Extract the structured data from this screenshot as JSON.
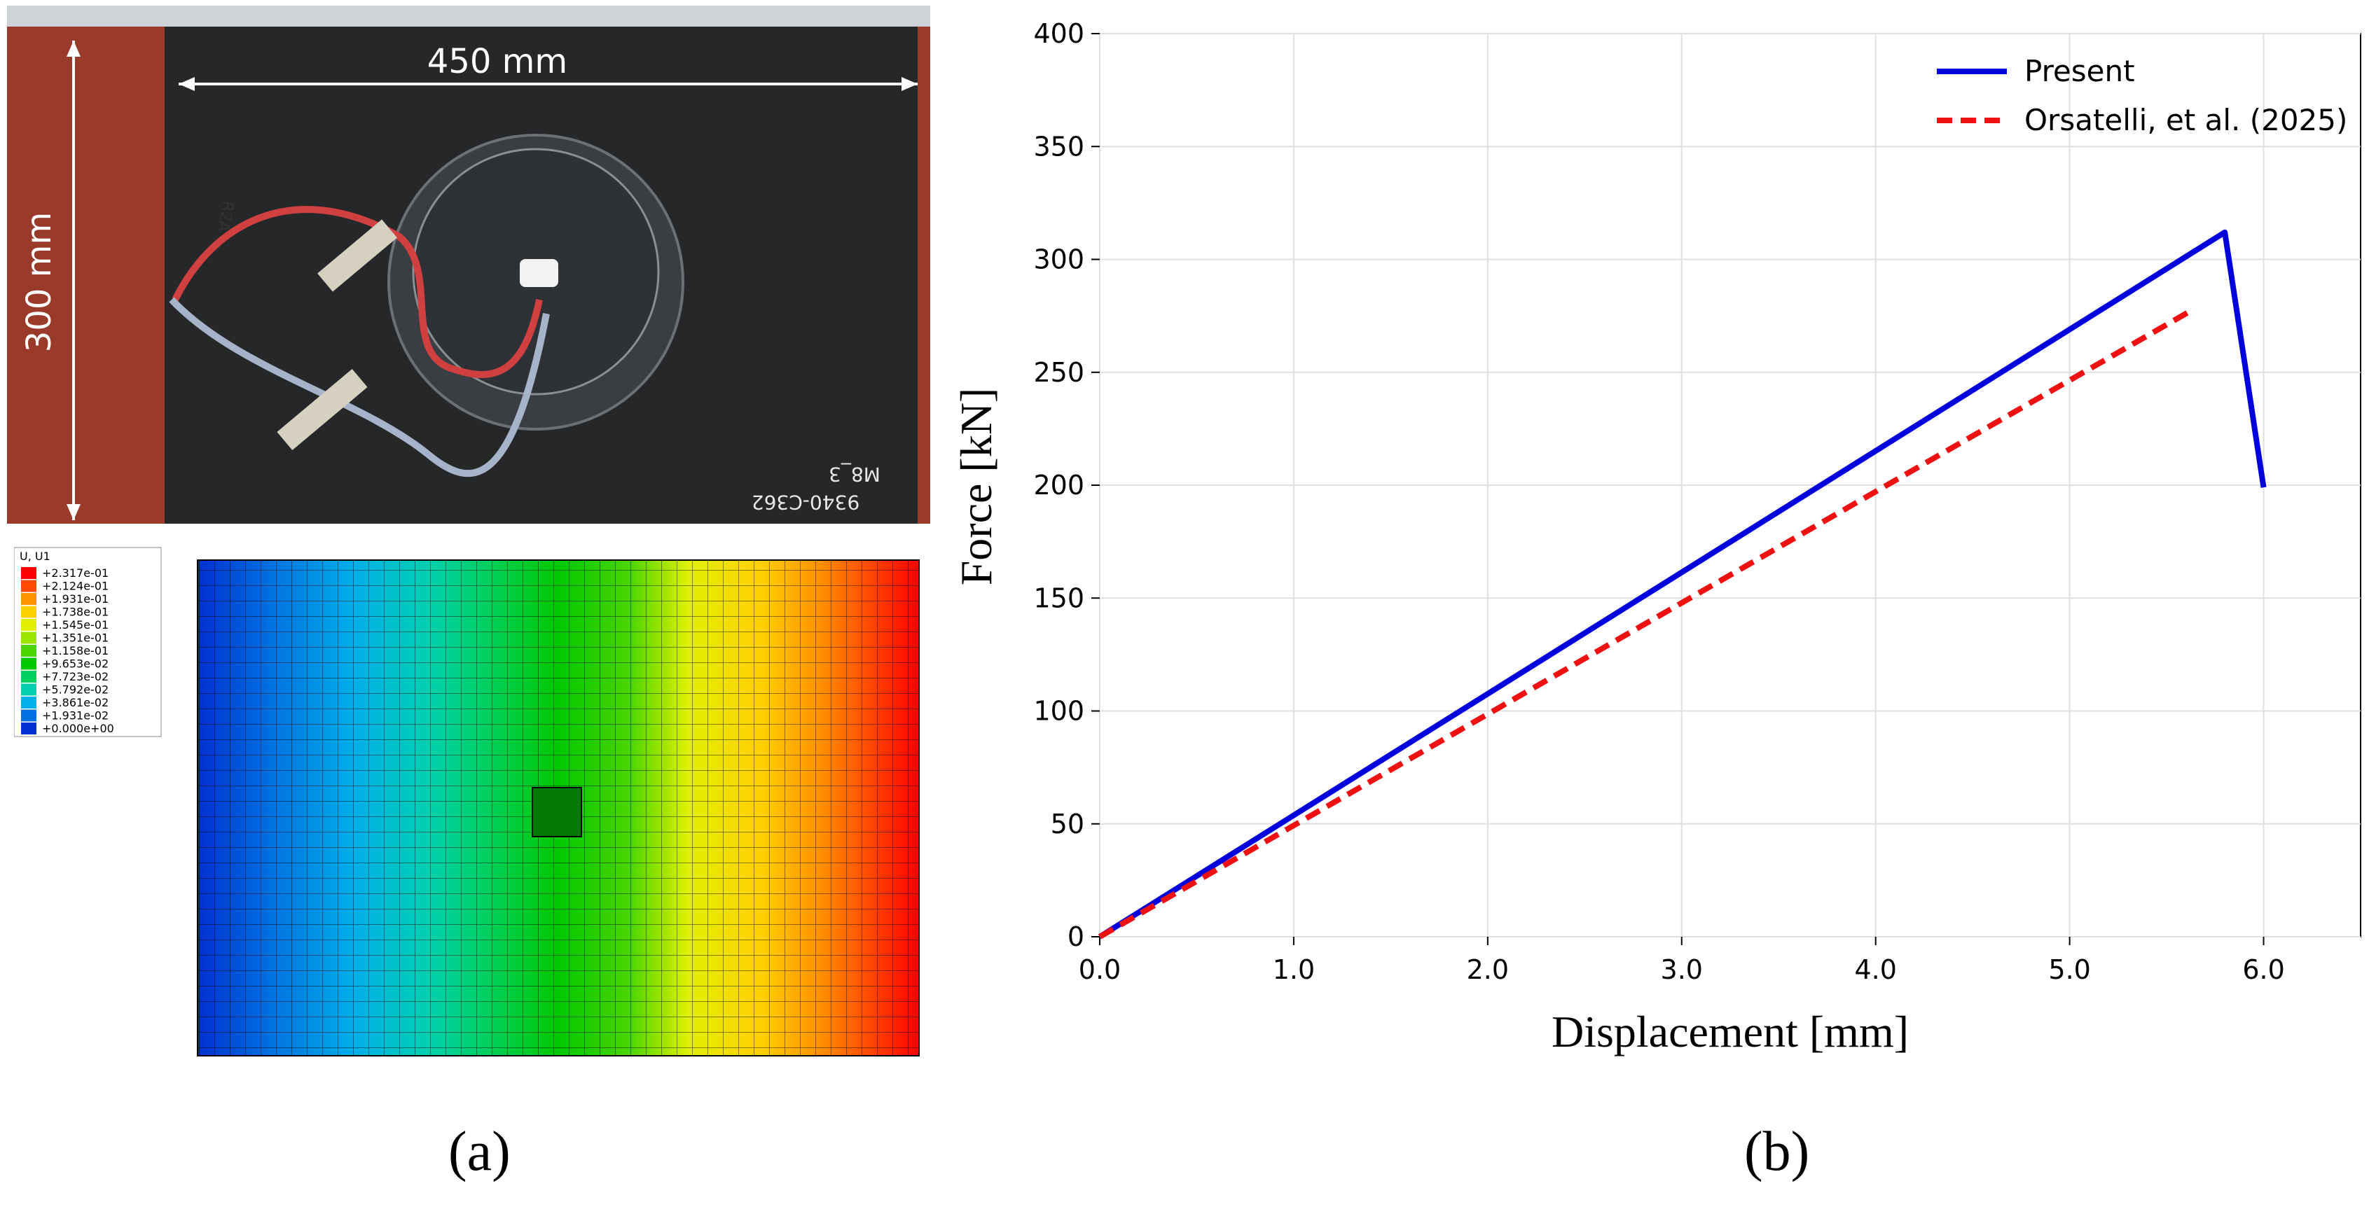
{
  "panel_a": {
    "photo": {
      "width_label": "450 mm",
      "height_label": "300 mm",
      "specimen_code": "9340-C362",
      "specimen_id": "M8_3",
      "wire_tag": "R2A"
    },
    "fem_legend": {
      "title": "U, U1",
      "entries": [
        "+2.317e-01",
        "+2.124e-01",
        "+1.931e-01",
        "+1.738e-01",
        "+1.545e-01",
        "+1.351e-01",
        "+1.158e-01",
        "+9.653e-02",
        "+7.723e-02",
        "+5.792e-02",
        "+3.861e-02",
        "+1.931e-02",
        "+0.000e+00"
      ],
      "colors": [
        "#ff0000",
        "#ff4a00",
        "#ff9400",
        "#ffd000",
        "#e0f000",
        "#9ae600",
        "#4cd600",
        "#00c800",
        "#00d060",
        "#00d0b0",
        "#00b0e8",
        "#0070e0",
        "#0030d0"
      ]
    },
    "caption": "(a)"
  },
  "chart_data": {
    "type": "line",
    "title": "",
    "xlabel": "Displacement [mm]",
    "ylabel": "Force [kN]",
    "xlim": [
      0,
      6.5
    ],
    "ylim": [
      0,
      400
    ],
    "xticks": [
      "0.0",
      "1.0",
      "2.0",
      "3.0",
      "4.0",
      "5.0",
      "6.0"
    ],
    "xtick_values": [
      0,
      1,
      2,
      3,
      4,
      5,
      6
    ],
    "yticks": [
      "0",
      "50",
      "100",
      "150",
      "200",
      "250",
      "300",
      "350",
      "400"
    ],
    "ytick_values": [
      0,
      50,
      100,
      150,
      200,
      250,
      300,
      350,
      400
    ],
    "grid": true,
    "legend_position": "top-right",
    "series": [
      {
        "name": "Present",
        "color": "#0000dd",
        "style": "solid",
        "x": [
          0,
          5.8,
          6.0
        ],
        "y": [
          0,
          312,
          199
        ]
      },
      {
        "name": "Orsatelli, et al. (2025)",
        "color": "#ee1111",
        "style": "dashed",
        "x": [
          0,
          5.62
        ],
        "y": [
          0,
          277
        ]
      }
    ],
    "caption": "(b)"
  }
}
